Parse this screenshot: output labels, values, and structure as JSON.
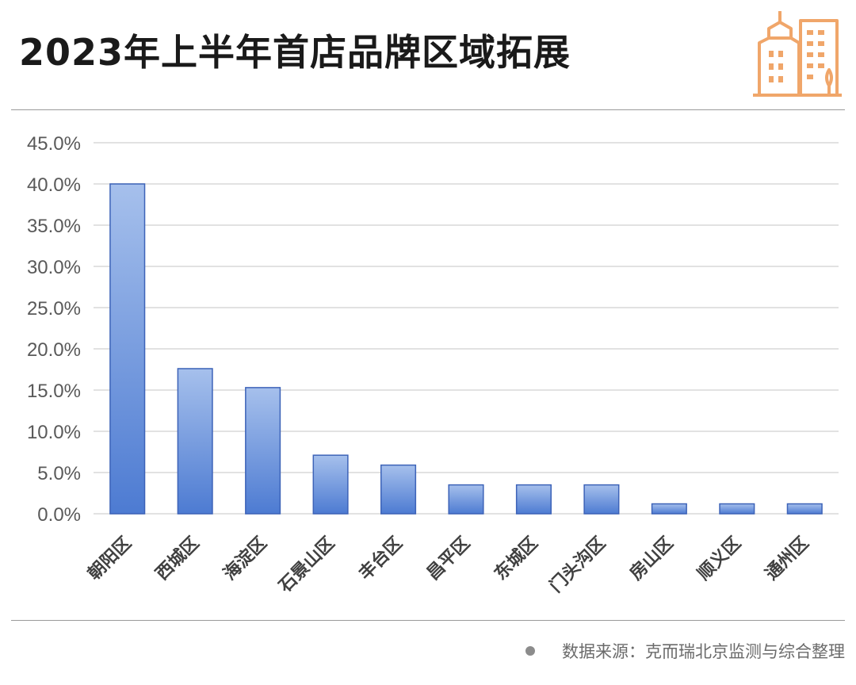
{
  "title": "2023年上半年首店品牌区域拓展",
  "source": "数据来源：克而瑞北京监测与综合整理",
  "colors": {
    "bar_top": "#a6c0ec",
    "bar_bottom": "#4d7bd2",
    "bar_stroke": "#3d63b8",
    "grid": "#d9d9d9",
    "logo": "#f0a66a"
  },
  "icons": {
    "logo": "city-buildings-icon",
    "source_bullet": "dot-icon"
  },
  "chart_data": {
    "type": "bar",
    "categories": [
      "朝阳区",
      "西城区",
      "海淀区",
      "石景山区",
      "丰台区",
      "昌平区",
      "东城区",
      "门头沟区",
      "房山区",
      "顺义区",
      "通州区"
    ],
    "values": [
      40.0,
      17.6,
      15.3,
      7.1,
      5.9,
      3.5,
      3.5,
      3.5,
      1.2,
      1.2,
      1.2
    ],
    "yticks": [
      "0.0%",
      "5.0%",
      "10.0%",
      "15.0%",
      "20.0%",
      "25.0%",
      "30.0%",
      "35.0%",
      "40.0%",
      "45.0%"
    ],
    "ylim": [
      0,
      45
    ],
    "grid": true
  }
}
